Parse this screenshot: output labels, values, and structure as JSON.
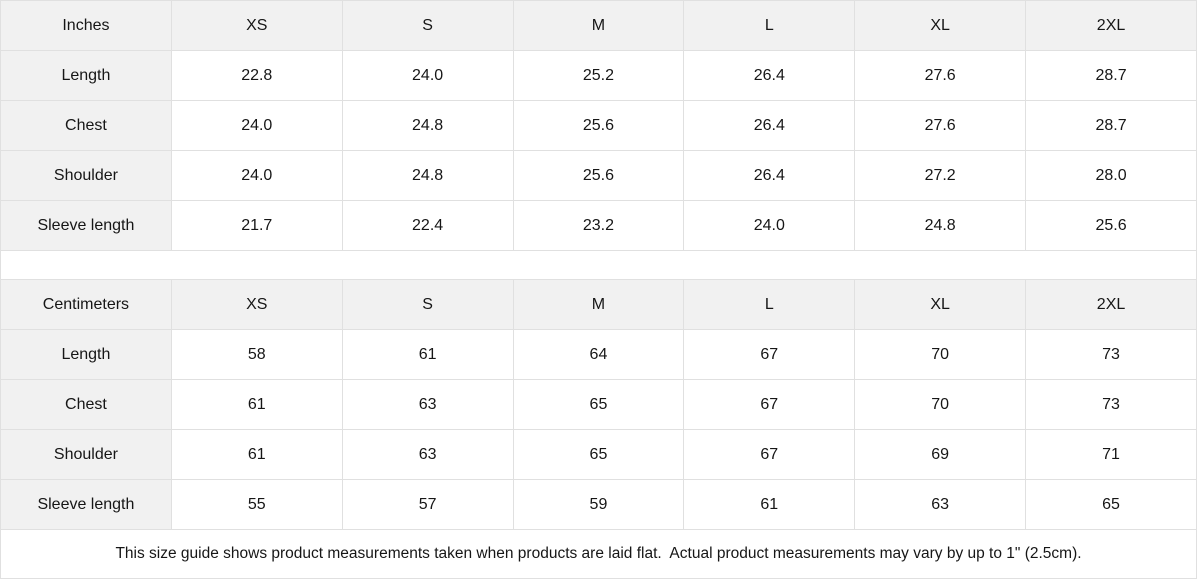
{
  "tables": [
    {
      "unit_label": "Inches",
      "columns": [
        "XS",
        "S",
        "M",
        "L",
        "XL",
        "2XL"
      ],
      "rows": [
        {
          "label": "Length",
          "values": [
            "22.8",
            "24.0",
            "25.2",
            "26.4",
            "27.6",
            "28.7"
          ]
        },
        {
          "label": "Chest",
          "values": [
            "24.0",
            "24.8",
            "25.6",
            "26.4",
            "27.6",
            "28.7"
          ]
        },
        {
          "label": "Shoulder",
          "values": [
            "24.0",
            "24.8",
            "25.6",
            "26.4",
            "27.2",
            "28.0"
          ]
        },
        {
          "label": "Sleeve length",
          "values": [
            "21.7",
            "22.4",
            "23.2",
            "24.0",
            "24.8",
            "25.6"
          ]
        }
      ]
    },
    {
      "unit_label": "Centimeters",
      "columns": [
        "XS",
        "S",
        "M",
        "L",
        "XL",
        "2XL"
      ],
      "rows": [
        {
          "label": "Length",
          "values": [
            "58",
            "61",
            "64",
            "67",
            "70",
            "73"
          ]
        },
        {
          "label": "Chest",
          "values": [
            "61",
            "63",
            "65",
            "67",
            "70",
            "73"
          ]
        },
        {
          "label": "Shoulder",
          "values": [
            "61",
            "63",
            "65",
            "67",
            "69",
            "71"
          ]
        },
        {
          "label": "Sleeve length",
          "values": [
            "55",
            "57",
            "59",
            "61",
            "63",
            "65"
          ]
        }
      ]
    }
  ],
  "footer": {
    "note": "This size guide shows product measurements taken when products are laid flat.  Actual product measurements may vary by up to 1\" (2.5cm)."
  },
  "colors": {
    "header_bg": "#f1f1f1",
    "border": "#e0e0e0",
    "text": "#161616"
  }
}
